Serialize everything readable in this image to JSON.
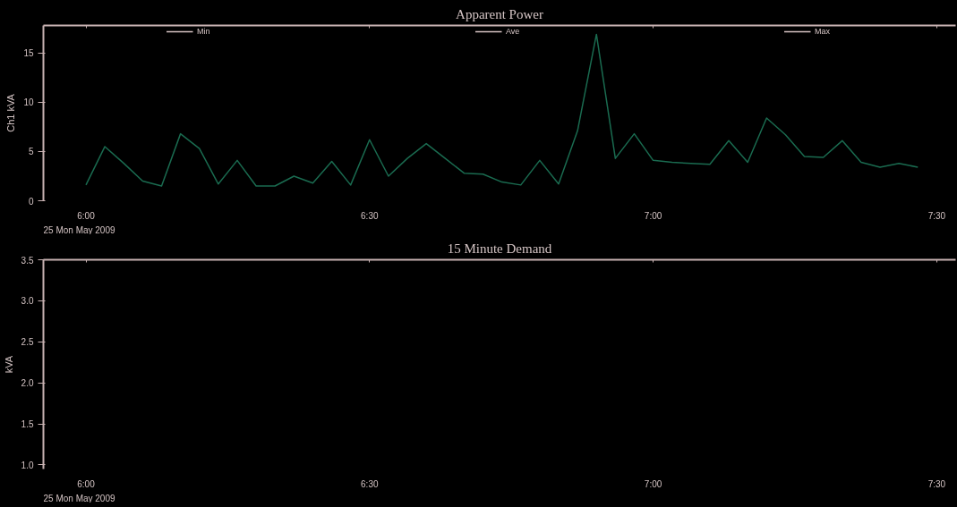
{
  "chart_data": [
    {
      "type": "line",
      "title": "Apparent Power",
      "ylabel": "Ch1 kVA",
      "legend": "top",
      "x": [
        "2009-05-25T06:00",
        "2009-05-25T06:02",
        "2009-05-25T06:04",
        "2009-05-25T06:06",
        "2009-05-25T06:08",
        "2009-05-25T06:10",
        "2009-05-25T06:12",
        "2009-05-25T06:14",
        "2009-05-25T06:16",
        "2009-05-25T06:18",
        "2009-05-25T06:20",
        "2009-05-25T06:22",
        "2009-05-25T06:24",
        "2009-05-25T06:26",
        "2009-05-25T06:28",
        "2009-05-25T06:30",
        "2009-05-25T06:32",
        "2009-05-25T06:34",
        "2009-05-25T06:36",
        "2009-05-25T06:38",
        "2009-05-25T06:40",
        "2009-05-25T06:42",
        "2009-05-25T06:44",
        "2009-05-25T06:46",
        "2009-05-25T06:48",
        "2009-05-25T06:50",
        "2009-05-25T06:52",
        "2009-05-25T06:54",
        "2009-05-25T06:56",
        "2009-05-25T06:58",
        "2009-05-25T07:00",
        "2009-05-25T07:02",
        "2009-05-25T07:04",
        "2009-05-25T07:06",
        "2009-05-25T07:08",
        "2009-05-25T07:10",
        "2009-05-25T07:12",
        "2009-05-25T07:14",
        "2009-05-25T07:16",
        "2009-05-25T07:18",
        "2009-05-25T07:20",
        "2009-05-25T07:22",
        "2009-05-25T07:24",
        "2009-05-25T07:26",
        "2009-05-25T07:28"
      ],
      "series": [
        {
          "color": "#1a6b50",
          "values": [
            1.6,
            5.5,
            3.8,
            2.0,
            1.5,
            6.8,
            5.3,
            1.7,
            4.1,
            1.5,
            1.5,
            2.5,
            1.8,
            4.0,
            1.6,
            6.2,
            2.5,
            4.3,
            5.8,
            4.3,
            2.8,
            2.7,
            1.9,
            1.6,
            4.1,
            1.7,
            7.1,
            16.9,
            4.3,
            6.8,
            4.1,
            3.9,
            3.8,
            3.7,
            6.1,
            3.9,
            8.4,
            6.7,
            4.5,
            4.4,
            6.1,
            3.9,
            3.4,
            3.8,
            3.4
          ]
        },
        {
          "name": "Min",
          "color": "#d8c4c4",
          "values": [
            null,
            null,
            null,
            null,
            null,
            null,
            null,
            null,
            null,
            null,
            null,
            null,
            null,
            null,
            null,
            null,
            null,
            null,
            null,
            null,
            null,
            null,
            null,
            null,
            null,
            null,
            null,
            null,
            null,
            null,
            null,
            null,
            null,
            null,
            null,
            null,
            null,
            null,
            null,
            null,
            null,
            null,
            null,
            null,
            null
          ]
        },
        {
          "name": "Ave",
          "color": "#d8c4c4",
          "values": [
            null,
            null,
            null,
            null,
            null,
            null,
            null,
            null,
            null,
            null,
            null,
            null,
            null,
            null,
            null,
            null,
            null,
            null,
            null,
            null,
            null,
            null,
            null,
            null,
            null,
            null,
            null,
            null,
            null,
            null,
            null,
            null,
            null,
            null,
            null,
            null,
            null,
            null,
            null,
            null,
            null,
            null,
            null,
            null,
            null
          ]
        },
        {
          "name": "Max",
          "color": "#d8c4c4",
          "values": [
            null,
            null,
            null,
            null,
            null,
            null,
            null,
            null,
            null,
            null,
            null,
            null,
            null,
            null,
            null,
            null,
            null,
            null,
            null,
            null,
            null,
            null,
            null,
            null,
            null,
            null,
            null,
            null,
            null,
            null,
            null,
            null,
            null,
            null,
            null,
            null,
            null,
            null,
            null,
            null,
            null,
            null,
            null,
            null,
            null
          ]
        }
      ],
      "xlim": [
        "2009-05-25T05:55:30",
        "2009-05-25T07:32"
      ],
      "xticks": [
        {
          "value": "2009-05-25T06:00",
          "label": "6:00"
        },
        {
          "value": "2009-05-25T06:30",
          "label": "6:30"
        },
        {
          "value": "2009-05-25T07:00",
          "label": "7:00"
        },
        {
          "value": "2009-05-25T07:30",
          "label": "7:30"
        }
      ],
      "ylim": [
        0,
        17.8
      ],
      "yticks": [
        0,
        5,
        10,
        15
      ],
      "annotations": [
        "25 Mon May 2009"
      ]
    },
    {
      "type": "line",
      "title": "15 Minute Demand",
      "ylabel": "kVA",
      "xlim": [
        "2009-05-25T05:55:30",
        "2009-05-25T07:32"
      ],
      "xticks": [
        {
          "value": "2009-05-25T06:00",
          "label": "6:00"
        },
        {
          "value": "2009-05-25T06:30",
          "label": "6:30"
        },
        {
          "value": "2009-05-25T07:00",
          "label": "7:00"
        },
        {
          "value": "2009-05-25T07:30",
          "label": "7:30"
        }
      ],
      "ylim": [
        0.95,
        3.5
      ],
      "yticks": [
        {
          "value": 1.0,
          "label": "1.0"
        },
        {
          "value": 1.5,
          "label": "1.5"
        },
        {
          "value": 2.0,
          "label": "2.0"
        },
        {
          "value": 2.5,
          "label": "2.5"
        },
        {
          "value": 3.0,
          "label": "3.0"
        },
        {
          "value": 3.5,
          "label": "3.5"
        }
      ],
      "annotations": [
        "25 Mon May 2009"
      ]
    }
  ]
}
